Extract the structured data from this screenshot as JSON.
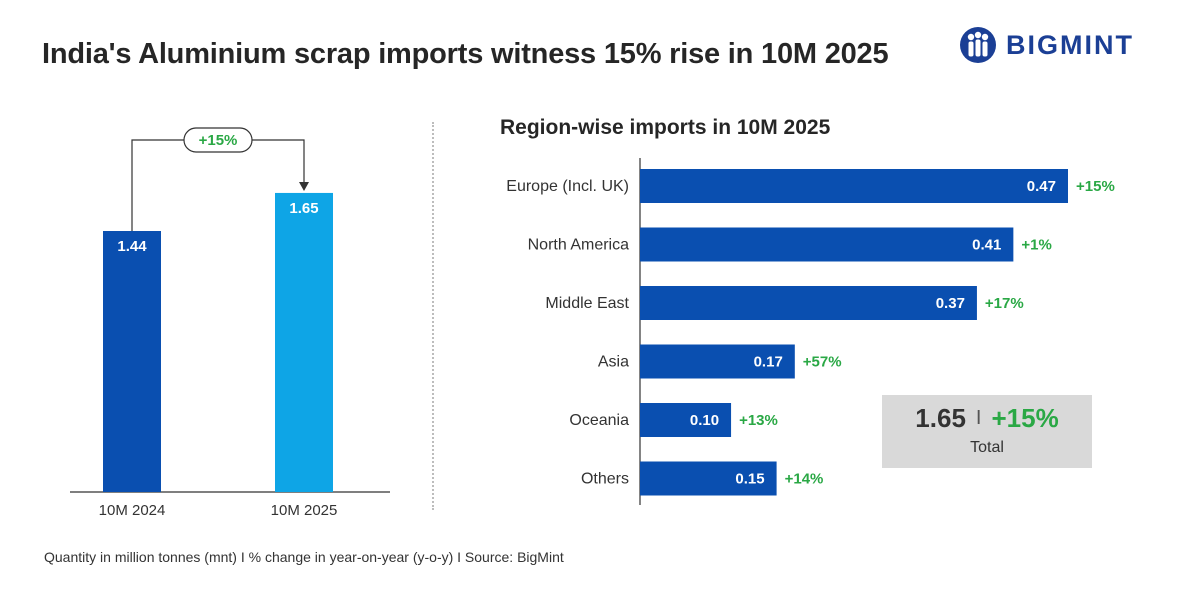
{
  "title": "India's Aluminium scrap imports witness 15% rise in 10M 2025",
  "logo": {
    "text": "BIGMINT",
    "icon": "bigmint-people-icon"
  },
  "footer": "Quantity in million tonnes (mnt)  I  % change in year-on-year (y-o-y)  I  Source: BigMint",
  "colors": {
    "dark_blue": "#0a4fb0",
    "light_blue": "#0ea5e6",
    "green": "#2aa845",
    "total_box": "#d9d9d9"
  },
  "chart_data": [
    {
      "type": "bar",
      "title": "",
      "categories": [
        "10M 2024",
        "10M 2025"
      ],
      "values": [
        1.44,
        1.65
      ],
      "value_labels": [
        "1.44",
        "1.65"
      ],
      "annotation": "+15%",
      "ylim": [
        0,
        1.9
      ],
      "xlabel": "",
      "ylabel": ""
    },
    {
      "type": "bar",
      "orientation": "horizontal",
      "title": "Region-wise imports in 10M 2025",
      "categories": [
        "Europe (Incl. UK)",
        "North America",
        "Middle East",
        "Asia",
        "Oceania",
        "Others"
      ],
      "values": [
        0.47,
        0.41,
        0.37,
        0.17,
        0.1,
        0.15
      ],
      "value_labels": [
        "0.47",
        "0.41",
        "0.37",
        "0.17",
        "0.10",
        "0.15"
      ],
      "changes": [
        "+15%",
        "+1%",
        "+17%",
        "+57%",
        "+13%",
        "+14%"
      ],
      "total": {
        "value": "1.65",
        "separator": "I",
        "change": "+15%",
        "label": "Total"
      }
    }
  ]
}
